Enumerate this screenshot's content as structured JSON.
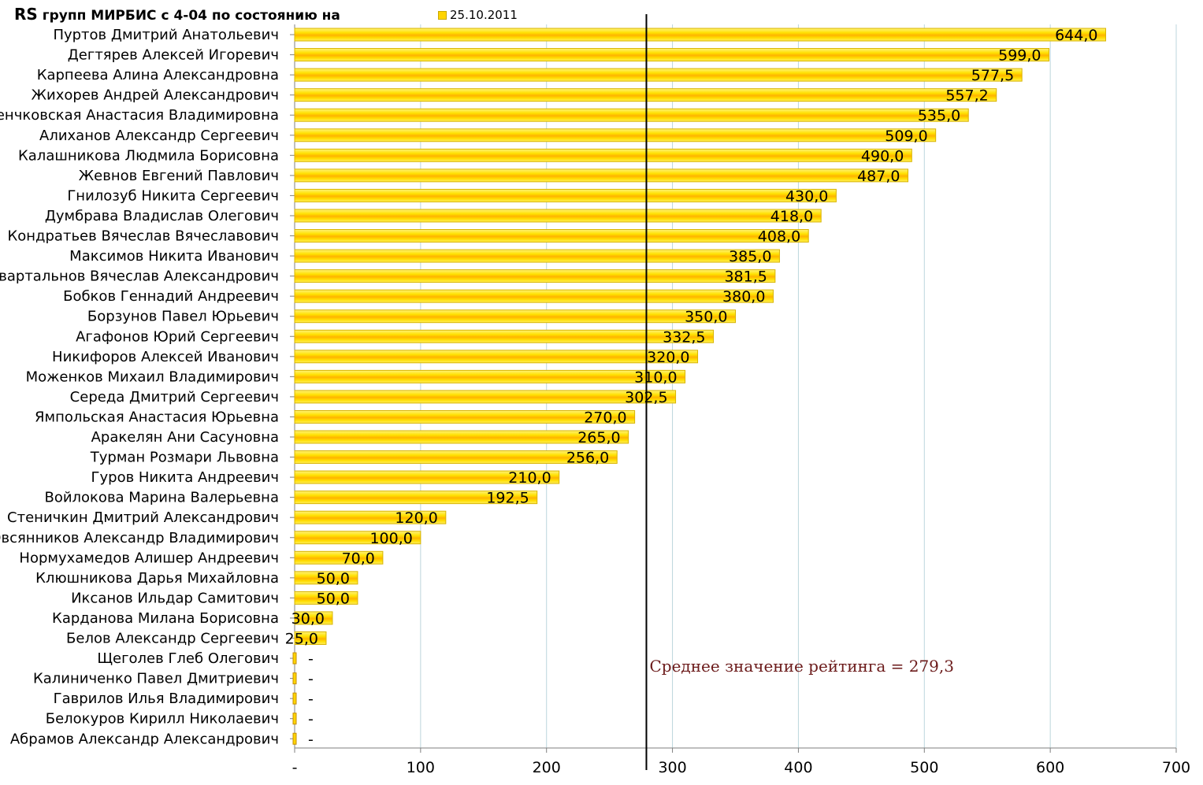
{
  "title_prefix": "RS",
  "title_rest": " групп МИРБИС с 4-04 по состоянию на",
  "legend": {
    "label": "25.10.2011",
    "color": "#ffd400"
  },
  "avg_annotation": "Среднее значение рейтинга = 279,3",
  "chart_data": {
    "type": "bar",
    "orientation": "horizontal",
    "title": "RS групп МИРБИС с 4-04 по состоянию на",
    "xlim": [
      0,
      700
    ],
    "x_ticks": [
      "-",
      "100",
      "200",
      "300",
      "400",
      "500",
      "600",
      "700"
    ],
    "x_tick_values": [
      0,
      100,
      200,
      300,
      400,
      500,
      600,
      700
    ],
    "grid": true,
    "legend_position": "top",
    "average": 279.3,
    "series": [
      {
        "name": "25.10.2011",
        "color": "#ffd400"
      }
    ],
    "categories": [
      "Пуртов Дмитрий Анатольевич",
      "Дегтярев Алексей Игоревич",
      "Карпеева Алина Александровна",
      "Жихорев Андрей Александрович",
      "Венчковская Анастасия Владимировна",
      "Алиханов Александр Сергеевич",
      "Калашникова Людмила Борисовна",
      "Жевнов Евгений Павлович",
      "Гнилозуб Никита Сергеевич",
      "Думбрава Владислав Олегович",
      "Кондратьев Вячеслав Вячеславович",
      "Максимов Никита Иванович",
      "Квартальнов Вячеслав Александрович",
      "Бобков Геннадий Андреевич",
      "Борзунов Павел Юрьевич",
      "Агафонов Юрий Сергеевич",
      "Никифоров Алексей Иванович",
      "Моженков Михаил Владимирович",
      "Середа Дмитрий Сергеевич",
      "Ямпольская Анастасия Юрьевна",
      "Аракелян Ани Сасуновна",
      "Турман Розмари Львовна",
      "Гуров Никита Андреевич",
      "Войлокова Марина Валерьевна",
      "Стеничкин Дмитрий Александрович",
      "Овсянников Александр Владимирович",
      "Нормухамедов Алишер Андреевич",
      "Клюшникова Дарья Михайловна",
      "Иксанов Ильдар Самитович",
      "Карданова Милана Борисовна",
      "Белов Александр Сергеевич",
      "Щеголев Глеб Олегович",
      "Калиниченко Павел Дмитриевич",
      "Гаврилов Илья Владимирович",
      "Белокуров Кирилл Николаевич",
      "Абрамов Александр Александрович"
    ],
    "values": [
      644.0,
      599.0,
      577.5,
      557.2,
      535.0,
      509.0,
      490.0,
      487.0,
      430.0,
      418.0,
      408.0,
      385.0,
      381.5,
      380.0,
      350.0,
      332.5,
      320.0,
      310.0,
      302.5,
      270.0,
      265.0,
      256.0,
      210.0,
      192.5,
      120.0,
      100.0,
      70.0,
      50.0,
      50.0,
      30.0,
      25.0,
      0,
      0,
      0,
      0,
      0
    ],
    "value_labels": [
      "644,0",
      "599,0",
      "577,5",
      "557,2",
      "535,0",
      "509,0",
      "490,0",
      "487,0",
      "430,0",
      "418,0",
      "408,0",
      "385,0",
      "381,5",
      "380,0",
      "350,0",
      "332,5",
      "320,0",
      "310,0",
      "302,5",
      "270,0",
      "265,0",
      "256,0",
      "210,0",
      "192,5",
      "120,0",
      "100,0",
      "70,0",
      "50,0",
      "50,0",
      "30,0",
      "25,0",
      "-",
      "-",
      "-",
      "-",
      "-"
    ]
  }
}
